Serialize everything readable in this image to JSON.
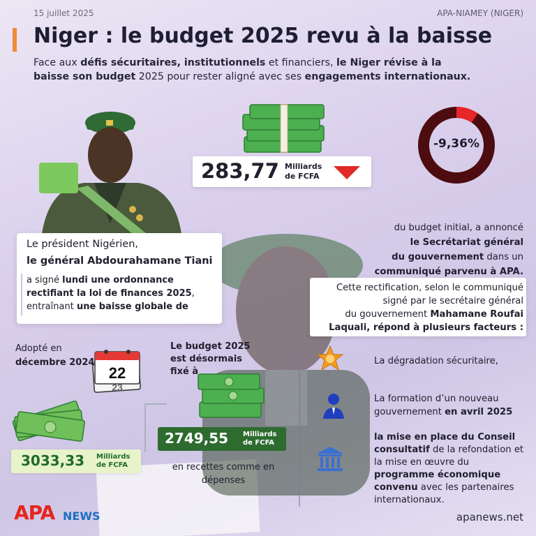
{
  "header": {
    "date": "15 juillet 2025",
    "source": "APA-NIAMEY (NIGER)",
    "title": "Niger : le budget 2025 revu à la baisse",
    "intro": {
      "p1": "Face aux ",
      "b1": "défis sécuritaires, institutionnels",
      "p2": " et financiers, ",
      "b2": "le Niger révise à la baisse son budget",
      "p3": " 2025 pour rester aligné avec ses ",
      "b3": "engagements internationaux."
    }
  },
  "reduction": {
    "amount": "283,77",
    "unit_line1": "Milliards",
    "unit_line2": "de FCFA",
    "percent": "-9,36%",
    "percent_fraction": 0.0936,
    "announce": {
      "l1": "du budget initial, a annoncé",
      "l2": "le Secrétariat général",
      "l3a": "du gouvernement",
      "l3b": " dans un",
      "l4": "communiqué parvenu à APA."
    }
  },
  "president": {
    "line1": "Le président Nigérien,",
    "line2": "le général Abdourahamane Tiani",
    "rest": {
      "p1": "a signé ",
      "b1": "lundi une ordonnance rectifiant la loi de finances 2025",
      "p2": ", entraînant ",
      "b2": "une baisse globale de"
    }
  },
  "rectification": {
    "l1": "Cette rectification, selon le communiqué",
    "l2": "signé par le secrétaire général",
    "l3a": "du gouvernement ",
    "l3b": "Mahamane Roufai",
    "l4": "Laquali, répond à plusieurs facteurs :"
  },
  "adopted": {
    "l1": "Adopté en",
    "l2": "décembre 2024 à",
    "calendar_top": "22",
    "calendar_bottom": "23",
    "amount": "3033,33",
    "unit_line1": "Milliards",
    "unit_line2": "de FCFA"
  },
  "new_budget": {
    "l1": "Le budget 2025",
    "l2": "est désormais",
    "l3": "fixé à",
    "amount": "2749,55",
    "unit_line1": "Milliards",
    "unit_line2": "de FCFA",
    "recettes": "en recettes comme en dépenses"
  },
  "factors": {
    "f1": "La dégradation sécuritaire,",
    "f2a": "La formation d’un nouveau gouvernement ",
    "f2b": "en avril 2025",
    "f3b1": "la mise en place du Conseil consultatif",
    "f3p1": " de la refondation et la mise en œuvre du ",
    "f3b2": "programme économique convenu",
    "f3p2": " avec les partenaires internationaux."
  },
  "footer": {
    "logo_apa": "APA",
    "logo_news": "NEWS",
    "website": "apanews.net"
  },
  "colors": {
    "accent": "#f08a3c",
    "down": "#e02a2a",
    "green": "#2d6b2f",
    "donut_dark": "#4d0c10",
    "donut_red": "#e8262a"
  },
  "icons": [
    "money-stack-icon",
    "down-arrow-icon",
    "calendar-icon",
    "sheriff-star-icon",
    "person-icon",
    "government-building-icon"
  ]
}
